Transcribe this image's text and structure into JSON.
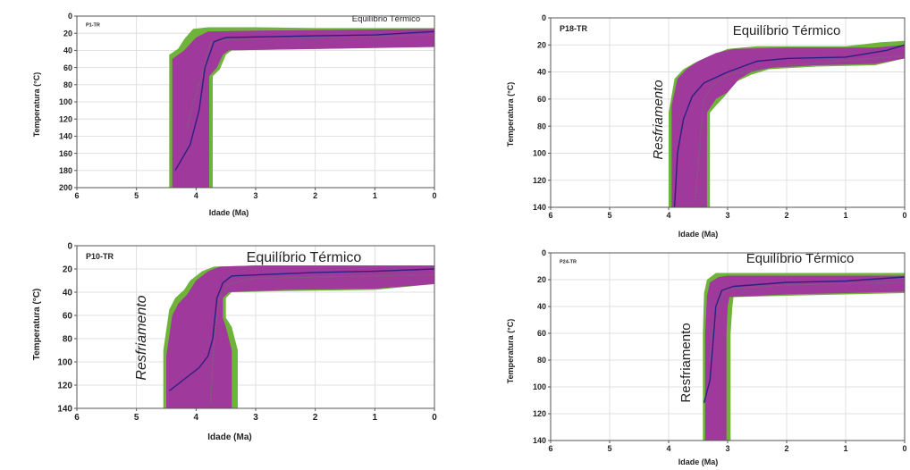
{
  "colors": {
    "envelope_good": "#6fb33a",
    "envelope_acceptable": "#a0399c",
    "best_path": "#2b2180",
    "mean_path": "#6e6e6e",
    "grid": "#d9d9d9",
    "axis": "#555555"
  },
  "chart_data": [
    {
      "type": "area",
      "panel_label": "P1-TR",
      "annotation_top": "Equilíbrio Térmico",
      "annotation_side": "",
      "xlabel": "Idade (Ma)",
      "ylabel": "Temperatura (°C)",
      "xlim": [
        6,
        0
      ],
      "ylim": [
        200,
        0
      ],
      "x_ticks": [
        6,
        5,
        4,
        3,
        2,
        1,
        0
      ],
      "y_ticks": [
        0,
        20,
        40,
        60,
        80,
        100,
        120,
        140,
        160,
        180,
        200
      ],
      "grid": true,
      "green_envelope": {
        "upper": [
          [
            4.45,
            200
          ],
          [
            4.45,
            45
          ],
          [
            4.3,
            38
          ],
          [
            4.2,
            27
          ],
          [
            4.05,
            15
          ],
          [
            3.8,
            13
          ],
          [
            3.0,
            13
          ],
          [
            2.0,
            14
          ],
          [
            0,
            14
          ]
        ],
        "lower": [
          [
            3.72,
            200
          ],
          [
            3.72,
            70
          ],
          [
            3.6,
            62
          ],
          [
            3.5,
            45
          ],
          [
            3.4,
            40
          ],
          [
            2.5,
            39
          ],
          [
            1.0,
            37
          ],
          [
            0,
            33
          ]
        ]
      },
      "purple_envelope": {
        "upper": [
          [
            4.4,
            200
          ],
          [
            4.4,
            50
          ],
          [
            4.2,
            40
          ],
          [
            4.0,
            25
          ],
          [
            3.8,
            18
          ],
          [
            3.0,
            17
          ],
          [
            0,
            15
          ]
        ],
        "lower": [
          [
            3.78,
            200
          ],
          [
            3.78,
            70
          ],
          [
            3.65,
            60
          ],
          [
            3.55,
            45
          ],
          [
            3.45,
            40
          ],
          [
            2.5,
            39
          ],
          [
            0,
            36
          ]
        ]
      },
      "best_path": [
        [
          4.35,
          180
        ],
        [
          4.1,
          150
        ],
        [
          3.95,
          110
        ],
        [
          3.85,
          60
        ],
        [
          3.7,
          30
        ],
        [
          3.5,
          25
        ],
        [
          2.0,
          23
        ],
        [
          1.0,
          22
        ],
        [
          0,
          18
        ]
      ],
      "mean_path": [
        [
          4.15,
          130
        ],
        [
          4.05,
          100
        ],
        [
          3.95,
          80
        ],
        [
          3.85,
          55
        ],
        [
          3.75,
          30
        ],
        [
          3.5,
          28
        ],
        [
          0,
          22
        ]
      ]
    },
    {
      "type": "area",
      "panel_label": "P18-TR",
      "annotation_top": "Equilíbrio Térmico",
      "annotation_side": "Resfriamento",
      "xlabel": "Idade (Ma)",
      "ylabel": "Temperatura (°C)",
      "xlim": [
        6,
        0
      ],
      "ylim": [
        140,
        0
      ],
      "x_ticks": [
        6,
        5,
        4,
        3,
        2,
        1,
        0
      ],
      "y_ticks": [
        0,
        20,
        40,
        60,
        80,
        100,
        120,
        140
      ],
      "grid": true,
      "green_envelope": {
        "upper": [
          [
            4.0,
            140
          ],
          [
            4.0,
            70
          ],
          [
            3.9,
            45
          ],
          [
            3.75,
            38
          ],
          [
            3.55,
            33
          ],
          [
            3.3,
            28
          ],
          [
            3.0,
            23
          ],
          [
            2.5,
            21
          ],
          [
            1.0,
            21
          ],
          [
            0.4,
            18
          ],
          [
            0,
            17
          ]
        ],
        "lower": [
          [
            3.3,
            140
          ],
          [
            3.3,
            70
          ],
          [
            3.2,
            65
          ],
          [
            3.05,
            58
          ],
          [
            2.85,
            47
          ],
          [
            2.6,
            42
          ],
          [
            2.3,
            38
          ],
          [
            1.5,
            36
          ],
          [
            0.5,
            35
          ],
          [
            0,
            30
          ]
        ]
      },
      "purple_envelope": {
        "upper": [
          [
            3.95,
            140
          ],
          [
            3.95,
            65
          ],
          [
            3.85,
            45
          ],
          [
            3.7,
            38
          ],
          [
            3.5,
            32
          ],
          [
            3.2,
            26
          ],
          [
            2.9,
            23
          ],
          [
            2.0,
            22
          ],
          [
            0.5,
            22
          ],
          [
            0,
            20
          ]
        ],
        "lower": [
          [
            3.35,
            140
          ],
          [
            3.35,
            70
          ],
          [
            3.2,
            60
          ],
          [
            3.0,
            55
          ],
          [
            2.8,
            45
          ],
          [
            2.6,
            40
          ],
          [
            2.3,
            37
          ],
          [
            1.5,
            35
          ],
          [
            0.5,
            34
          ],
          [
            0,
            30
          ]
        ]
      },
      "best_path": [
        [
          3.9,
          140
        ],
        [
          3.85,
          100
        ],
        [
          3.75,
          75
        ],
        [
          3.6,
          58
        ],
        [
          3.4,
          48
        ],
        [
          3.0,
          40
        ],
        [
          2.5,
          32
        ],
        [
          2.0,
          30
        ],
        [
          1.0,
          29
        ],
        [
          0.3,
          24
        ],
        [
          0,
          20
        ]
      ],
      "mean_path": [
        [
          3.55,
          135
        ],
        [
          3.5,
          110
        ],
        [
          3.45,
          80
        ],
        [
          3.4,
          60
        ],
        [
          3.25,
          50
        ],
        [
          3.0,
          42
        ],
        [
          2.0,
          35
        ],
        [
          0,
          28
        ]
      ]
    },
    {
      "type": "area",
      "panel_label": "P10-TR",
      "annotation_top": "Equilíbrio Térmico",
      "annotation_side": "Resfriamento",
      "xlabel": "Idade (Ma)",
      "ylabel": "Temperatura (°C)",
      "xlim": [
        6,
        0
      ],
      "ylim": [
        140,
        0
      ],
      "x_ticks": [
        6,
        5,
        4,
        3,
        2,
        1,
        0
      ],
      "y_ticks": [
        0,
        20,
        40,
        60,
        80,
        100,
        120,
        140
      ],
      "grid": true,
      "green_envelope": {
        "upper": [
          [
            4.55,
            140
          ],
          [
            4.55,
            90
          ],
          [
            4.45,
            55
          ],
          [
            4.35,
            45
          ],
          [
            4.2,
            38
          ],
          [
            4.1,
            30
          ],
          [
            3.9,
            22
          ],
          [
            3.7,
            18
          ],
          [
            3.0,
            17
          ],
          [
            0,
            17
          ]
        ],
        "lower": [
          [
            3.3,
            140
          ],
          [
            3.3,
            90
          ],
          [
            3.4,
            70
          ],
          [
            3.5,
            62
          ],
          [
            3.5,
            45
          ],
          [
            3.4,
            40
          ],
          [
            2.5,
            39
          ],
          [
            1.0,
            38
          ],
          [
            0,
            33
          ]
        ]
      },
      "purple_envelope": {
        "upper": [
          [
            4.5,
            140
          ],
          [
            4.5,
            95
          ],
          [
            4.4,
            60
          ],
          [
            4.3,
            50
          ],
          [
            4.15,
            42
          ],
          [
            4.0,
            30
          ],
          [
            3.8,
            22
          ],
          [
            3.6,
            18
          ],
          [
            3.0,
            17
          ],
          [
            0,
            17
          ]
        ],
        "lower": [
          [
            3.4,
            140
          ],
          [
            3.4,
            90
          ],
          [
            3.5,
            70
          ],
          [
            3.55,
            62
          ],
          [
            3.55,
            45
          ],
          [
            3.45,
            40
          ],
          [
            2.5,
            38
          ],
          [
            1.0,
            37
          ],
          [
            0,
            33
          ]
        ]
      },
      "best_path": [
        [
          4.45,
          125
        ],
        [
          4.2,
          115
        ],
        [
          3.95,
          105
        ],
        [
          3.8,
          95
        ],
        [
          3.72,
          80
        ],
        [
          3.65,
          45
        ],
        [
          3.55,
          32
        ],
        [
          3.4,
          26
        ],
        [
          2.0,
          23
        ],
        [
          1.0,
          22
        ],
        [
          0,
          20
        ]
      ],
      "mean_path": [
        [
          3.75,
          135
        ],
        [
          3.72,
          100
        ],
        [
          3.68,
          70
        ],
        [
          3.6,
          45
        ],
        [
          3.45,
          33
        ],
        [
          3.0,
          28
        ],
        [
          0,
          25
        ]
      ]
    },
    {
      "type": "area",
      "panel_label": "P24-TR",
      "annotation_top": "Equilíbrio Térmico",
      "annotation_side": "Resfriamento",
      "xlabel": "Idade (Ma)",
      "ylabel": "Temperatura (°C)",
      "xlim": [
        6,
        0
      ],
      "ylim": [
        140,
        0
      ],
      "x_ticks": [
        6,
        5,
        4,
        3,
        2,
        1,
        0
      ],
      "y_ticks": [
        0,
        20,
        40,
        60,
        80,
        100,
        120,
        140
      ],
      "grid": true,
      "green_envelope": {
        "upper": [
          [
            3.42,
            140
          ],
          [
            3.42,
            60
          ],
          [
            3.4,
            30
          ],
          [
            3.35,
            20
          ],
          [
            3.2,
            15
          ],
          [
            3.0,
            15
          ],
          [
            0,
            15
          ]
        ],
        "lower": [
          [
            2.95,
            140
          ],
          [
            2.95,
            60
          ],
          [
            2.92,
            40
          ],
          [
            2.9,
            33
          ],
          [
            2.0,
            32
          ],
          [
            1.0,
            31
          ],
          [
            0,
            30
          ]
        ]
      },
      "purple_envelope": {
        "upper": [
          [
            3.38,
            140
          ],
          [
            3.38,
            60
          ],
          [
            3.35,
            32
          ],
          [
            3.3,
            22
          ],
          [
            3.15,
            18
          ],
          [
            3.0,
            17
          ],
          [
            0,
            17
          ]
        ],
        "lower": [
          [
            3.02,
            140
          ],
          [
            3.02,
            60
          ],
          [
            3.0,
            40
          ],
          [
            2.97,
            33
          ],
          [
            2.0,
            31
          ],
          [
            1.0,
            30
          ],
          [
            0,
            29
          ]
        ]
      },
      "best_path": [
        [
          3.4,
          112
        ],
        [
          3.3,
          95
        ],
        [
          3.2,
          40
        ],
        [
          3.1,
          28
        ],
        [
          2.9,
          25
        ],
        [
          2.0,
          22
        ],
        [
          1.0,
          21
        ],
        [
          0,
          18
        ]
      ],
      "mean_path": [
        [
          3.3,
          80
        ],
        [
          3.25,
          55
        ],
        [
          3.15,
          35
        ],
        [
          3.0,
          27
        ],
        [
          2.0,
          24
        ],
        [
          0,
          22
        ]
      ]
    }
  ]
}
